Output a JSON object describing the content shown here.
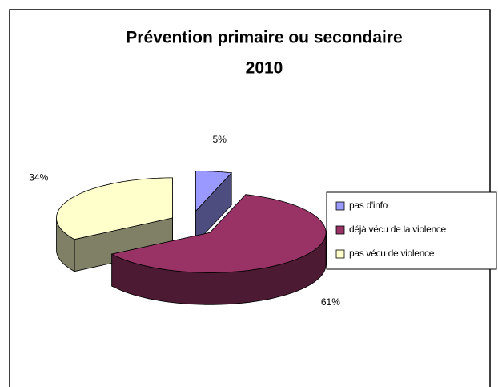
{
  "chart_data": {
    "type": "pie",
    "title": [
      "Prévention primaire ou  secondaire",
      "2010"
    ],
    "categories": [
      "pas d'info",
      "déjà vécu de la violence",
      "pas vécu de violence"
    ],
    "values": [
      5,
      61,
      34
    ],
    "value_labels": [
      "5%",
      "61%",
      "34%"
    ],
    "colors": [
      "#9999ff",
      "#993366",
      "#ffffcc"
    ],
    "legend": "right"
  }
}
